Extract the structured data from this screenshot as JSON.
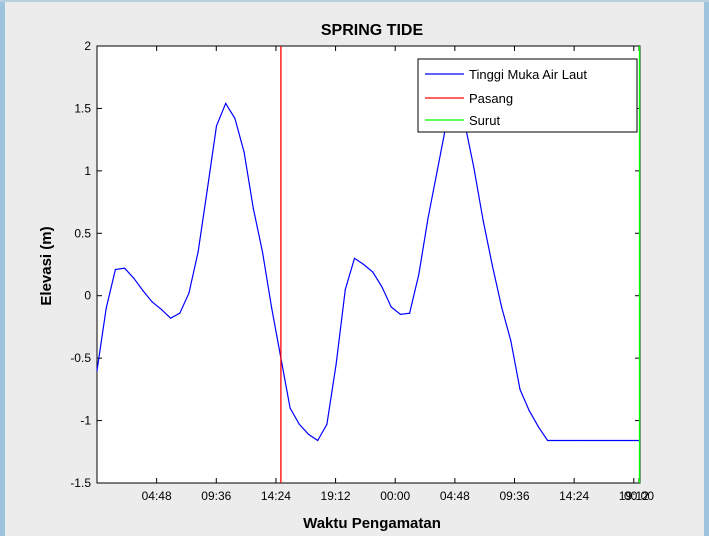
{
  "figure": {
    "background": "#ececec"
  },
  "chart_data": {
    "type": "line",
    "title": "SPRING TIDE",
    "xlabel": "Waktu Pengamatan",
    "ylabel": "Elevasi (m)",
    "xlim": [
      0,
      43.7
    ],
    "ylim": [
      -1.5,
      2
    ],
    "x_ticks": [
      {
        "x": 4.8,
        "label": "04:48"
      },
      {
        "x": 9.6,
        "label": "09:36"
      },
      {
        "x": 14.4,
        "label": "14:24"
      },
      {
        "x": 19.2,
        "label": "19:12"
      },
      {
        "x": 24.0,
        "label": "00:00"
      },
      {
        "x": 28.8,
        "label": "04:48"
      },
      {
        "x": 33.6,
        "label": "09:36"
      },
      {
        "x": 38.4,
        "label": "14:24"
      },
      {
        "x": 43.2,
        "label": "19:12"
      },
      {
        "x": 48.0,
        "label": "00:00"
      }
    ],
    "y_ticks": [
      "-1.5",
      "-1",
      "-0.5",
      "0",
      "0.5",
      "1",
      "1.5",
      "2"
    ],
    "grid": false,
    "legend_position": "top-right",
    "series": [
      {
        "name": "Tinggi Muka Air Laut",
        "color": "#0000ff",
        "x": [
          0,
          0.74,
          1.48,
          2.22,
          2.96,
          3.7,
          4.44,
          5.18,
          5.92,
          6.66,
          7.4,
          8.14,
          8.88,
          9.62,
          10.36,
          11.1,
          11.84,
          12.58,
          13.32,
          14.06,
          14.8,
          15.54,
          16.28,
          17.02,
          17.76,
          18.5,
          19.24,
          19.98,
          20.72,
          21.46,
          22.2,
          22.94,
          23.68,
          24.42,
          25.16,
          25.9,
          26.64,
          27.38,
          28.12,
          28.86,
          29.6,
          30.34,
          31.08,
          31.82,
          32.56,
          33.3,
          34.04,
          34.78,
          35.52,
          36.26,
          37.0,
          37.74,
          38.48,
          39.22,
          39.96,
          40.7,
          41.44,
          42.18,
          42.92,
          43.66
        ],
        "values": [
          -0.6,
          -0.1,
          0.21,
          0.22,
          0.14,
          0.04,
          -0.05,
          -0.11,
          -0.18,
          -0.14,
          0.02,
          0.35,
          0.85,
          1.36,
          1.54,
          1.42,
          1.15,
          0.7,
          0.35,
          -0.1,
          -0.5,
          -0.9,
          -1.03,
          -1.11,
          -1.16,
          -1.03,
          -0.55,
          0.05,
          0.3,
          0.25,
          0.19,
          0.07,
          -0.09,
          -0.15,
          -0.14,
          0.17,
          0.62,
          1.0,
          1.38,
          1.5,
          1.38,
          1.02,
          0.6,
          0.24,
          -0.09,
          -0.36,
          -0.75,
          -0.92,
          -1.05,
          -1.16,
          -1.16,
          -1.16,
          -1.16,
          -1.16,
          -1.16,
          -1.16,
          -1.16,
          -1.16,
          -1.16,
          -1.16
        ]
      },
      {
        "name": "Pasang",
        "color": "#ff0000",
        "type": "vline",
        "x_value": 14.8
      },
      {
        "name": "Surut",
        "color": "#00ff00",
        "type": "vline",
        "x_value": 43.66
      }
    ]
  }
}
